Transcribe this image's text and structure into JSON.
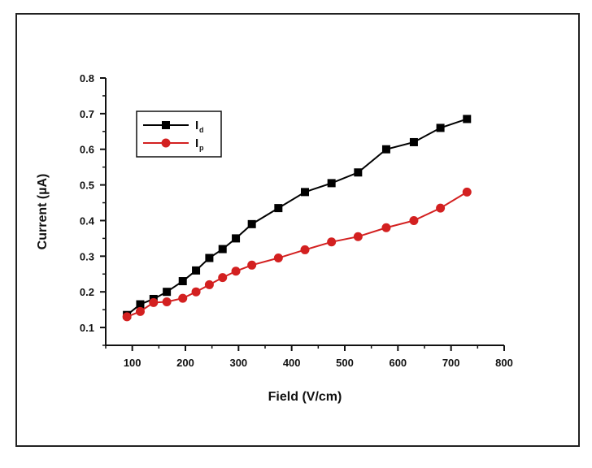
{
  "chart_data": {
    "type": "line",
    "title": "",
    "xlabel": "Field (V/cm)",
    "ylabel": "Current (µA)",
    "xlim": [
      50,
      800
    ],
    "ylim": [
      0.05,
      0.8
    ],
    "xticks": [
      100,
      200,
      300,
      400,
      500,
      600,
      700,
      800
    ],
    "yticks": [
      0.1,
      0.2,
      0.3,
      0.4,
      0.5,
      0.6,
      0.7,
      0.8
    ],
    "xtick_labels": [
      "100",
      "200",
      "300",
      "400",
      "500",
      "600",
      "700",
      "800"
    ],
    "ytick_labels": [
      "0.1",
      "0.2",
      "0.3",
      "0.4",
      "0.5",
      "0.6",
      "0.7",
      "0.8"
    ],
    "legend": {
      "placement": "top-left"
    },
    "series": [
      {
        "name": "Id",
        "label_main": "I",
        "label_sub": "d",
        "color": "#000000",
        "marker": "square",
        "x": [
          90,
          115,
          140,
          165,
          195,
          220,
          245,
          270,
          295,
          325,
          375,
          425,
          475,
          525,
          578,
          630,
          680,
          730
        ],
        "y": [
          0.135,
          0.165,
          0.18,
          0.2,
          0.23,
          0.26,
          0.295,
          0.32,
          0.35,
          0.39,
          0.435,
          0.48,
          0.505,
          0.535,
          0.6,
          0.62,
          0.66,
          0.685
        ]
      },
      {
        "name": "Ip",
        "label_main": "I",
        "label_sub": "p",
        "color": "#d32020",
        "marker": "circle",
        "x": [
          90,
          115,
          140,
          165,
          195,
          220,
          245,
          270,
          295,
          325,
          375,
          425,
          475,
          525,
          578,
          630,
          680,
          730
        ],
        "y": [
          0.13,
          0.145,
          0.17,
          0.172,
          0.182,
          0.2,
          0.22,
          0.24,
          0.258,
          0.275,
          0.295,
          0.318,
          0.34,
          0.355,
          0.38,
          0.4,
          0.435,
          0.48
        ]
      }
    ]
  }
}
